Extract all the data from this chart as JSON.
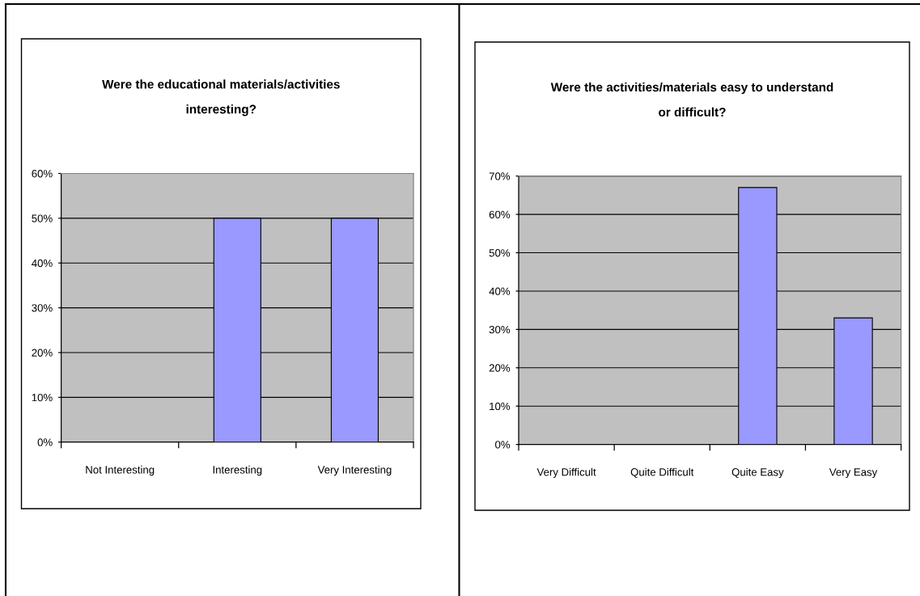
{
  "chart_data": [
    {
      "type": "bar",
      "title": "Were the educational materials/activities\ninteresting?",
      "categories": [
        "Not Interesting",
        "Interesting",
        "Very Interesting"
      ],
      "values": [
        0,
        50,
        50
      ],
      "color": "#9999ff",
      "ylim": [
        0,
        60
      ],
      "yticks": [
        {
          "value": 0,
          "label": "0%"
        },
        {
          "value": 10,
          "label": "10%"
        },
        {
          "value": 20,
          "label": "20%"
        },
        {
          "value": 30,
          "label": "30%"
        },
        {
          "value": 40,
          "label": "40%"
        },
        {
          "value": 50,
          "label": "50%"
        },
        {
          "value": 60,
          "label": "60%"
        }
      ],
      "grid": "y"
    },
    {
      "type": "bar",
      "title": "Were the activities/materials easy to understand\nor difficult?",
      "categories": [
        "Very Difficult",
        "Quite Difficult",
        "Quite Easy",
        "Very Easy"
      ],
      "values": [
        0,
        0,
        67,
        33
      ],
      "color": "#9999ff",
      "ylim": [
        0,
        70
      ],
      "yticks": [
        {
          "value": 0,
          "label": "0%"
        },
        {
          "value": 10,
          "label": "10%"
        },
        {
          "value": 20,
          "label": "20%"
        },
        {
          "value": 30,
          "label": "30%"
        },
        {
          "value": 40,
          "label": "40%"
        },
        {
          "value": 50,
          "label": "50%"
        },
        {
          "value": 60,
          "label": "60%"
        },
        {
          "value": 70,
          "label": "70%"
        }
      ],
      "grid": "y"
    }
  ]
}
